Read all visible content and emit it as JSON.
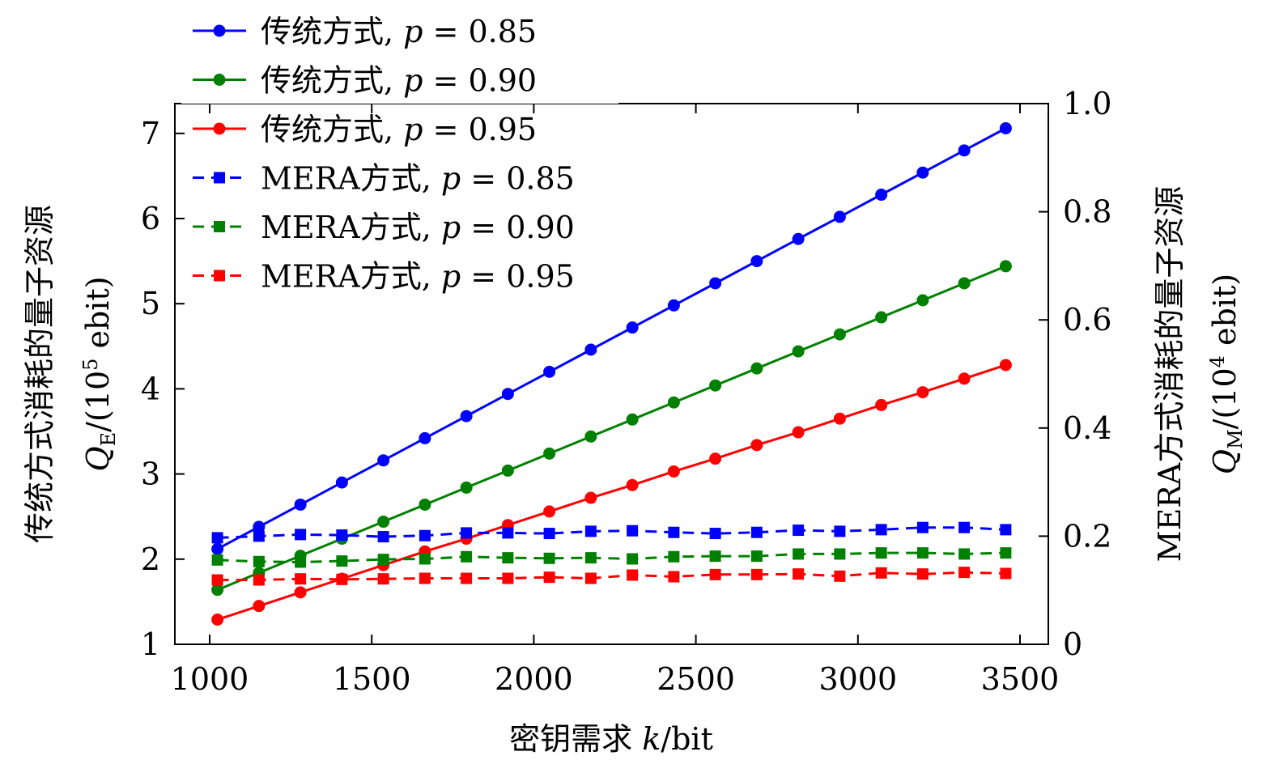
{
  "chart_data": {
    "type": "line",
    "xlabel": "密钥需求 k/bit",
    "xlabel_parts": {
      "text": "密钥需求 ",
      "var": "k",
      "unit": "/bit"
    },
    "ylabel_left": {
      "line1": "传统方式消耗的量子资源",
      "line2": "Q_E/(10^5 ebit)",
      "sym": "Q",
      "sub": "E",
      "unit_pre": "/(10",
      "exp": "5",
      "unit_post": " ebit)"
    },
    "ylabel_right": {
      "line1": "MERA方式消耗的量子资源",
      "line2": "Q_M/(10^4 ebit)",
      "sym": "Q",
      "sub": "M",
      "unit_pre": "/(10",
      "exp": "4",
      "unit_post": " ebit)"
    },
    "xlim": [
      900,
      3500
    ],
    "ylim_left": [
      1,
      7.35
    ],
    "ylim_right": [
      0,
      1.0
    ],
    "xticks": [
      "1000",
      "1500",
      "2000",
      "2500",
      "3000",
      "3500"
    ],
    "yticks_left": [
      "1",
      "2",
      "3",
      "4",
      "5",
      "6",
      "7"
    ],
    "yticks_right": [
      "0",
      "0.2",
      "0.4",
      "0.6",
      "0.8",
      "1.0"
    ],
    "legend_position": "top-left",
    "x": [
      1024,
      1152,
      1280,
      1408,
      1536,
      1664,
      1792,
      1920,
      2048,
      2176,
      2304,
      2432,
      2560,
      2688,
      2816,
      2944,
      3072,
      3200,
      3328,
      3456
    ],
    "series": [
      {
        "name": "传统方式, p = 0.85",
        "label_text": "传统方式, ",
        "label_var": "p",
        "label_val": " = 0.85",
        "axis": "left",
        "style": "solid",
        "marker": "circle",
        "color": "#0000ff",
        "values": [
          2.12,
          2.38,
          2.64,
          2.9,
          3.16,
          3.42,
          3.68,
          3.94,
          4.2,
          4.46,
          4.72,
          4.98,
          5.24,
          5.5,
          5.76,
          6.02,
          6.28,
          6.54,
          6.8,
          7.06
        ]
      },
      {
        "name": "传统方式, p = 0.90",
        "label_text": "传统方式, ",
        "label_var": "p",
        "label_val": " = 0.90",
        "axis": "left",
        "style": "solid",
        "marker": "circle",
        "color": "#008000",
        "values": [
          1.64,
          1.84,
          2.04,
          2.24,
          2.44,
          2.64,
          2.84,
          3.04,
          3.24,
          3.44,
          3.64,
          3.84,
          4.04,
          4.24,
          4.44,
          4.64,
          4.84,
          5.04,
          5.24,
          5.44
        ]
      },
      {
        "name": "传统方式, p = 0.95",
        "label_text": "传统方式, ",
        "label_var": "p",
        "label_val": " = 0.95",
        "axis": "left",
        "style": "solid",
        "marker": "circle",
        "color": "#ff0000",
        "values": [
          1.29,
          1.45,
          1.61,
          1.77,
          1.93,
          2.09,
          2.24,
          2.4,
          2.56,
          2.72,
          2.87,
          3.03,
          3.18,
          3.34,
          3.49,
          3.65,
          3.81,
          3.96,
          4.12,
          4.28
        ]
      },
      {
        "name": "MERA方式, p = 0.85",
        "label_text": "MERA方式, ",
        "label_var": "p",
        "label_val": " = 0.85",
        "axis": "right",
        "style": "dashed",
        "marker": "square",
        "color": "#0000ff",
        "values": [
          0.197,
          0.2,
          0.203,
          0.202,
          0.199,
          0.201,
          0.206,
          0.206,
          0.205,
          0.209,
          0.21,
          0.207,
          0.205,
          0.207,
          0.211,
          0.209,
          0.212,
          0.216,
          0.216,
          0.212
        ]
      },
      {
        "name": "MERA方式, p = 0.90",
        "label_text": "MERA方式, ",
        "label_var": "p",
        "label_val": " = 0.90",
        "axis": "right",
        "style": "dashed",
        "marker": "square",
        "color": "#008000",
        "values": [
          0.156,
          0.153,
          0.152,
          0.154,
          0.157,
          0.158,
          0.162,
          0.16,
          0.159,
          0.16,
          0.158,
          0.162,
          0.163,
          0.163,
          0.167,
          0.167,
          0.169,
          0.169,
          0.167,
          0.169
        ]
      },
      {
        "name": "MERA方式, p = 0.95",
        "label_text": "MERA方式, ",
        "label_var": "p",
        "label_val": " = 0.95",
        "axis": "right",
        "style": "dashed",
        "marker": "square",
        "color": "#ff0000",
        "values": [
          0.119,
          0.119,
          0.121,
          0.12,
          0.121,
          0.122,
          0.122,
          0.122,
          0.124,
          0.122,
          0.128,
          0.125,
          0.129,
          0.129,
          0.13,
          0.126,
          0.132,
          0.13,
          0.133,
          0.131
        ]
      }
    ]
  }
}
